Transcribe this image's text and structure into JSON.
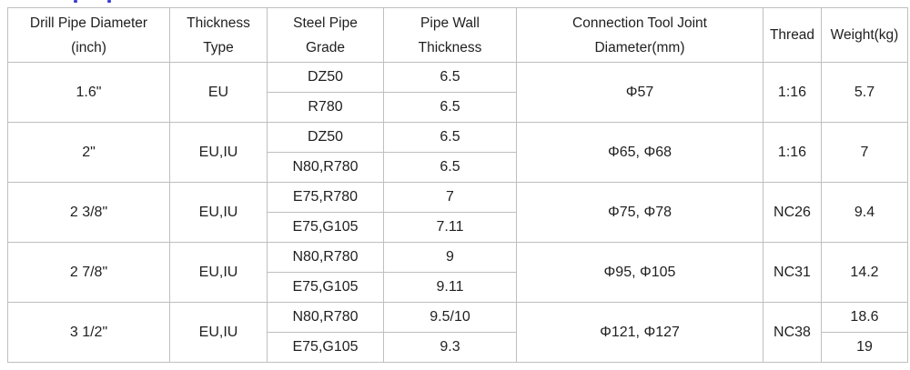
{
  "decor": {
    "cropped_title_fragment_color": "#3c3cd6"
  },
  "colors": {
    "border": "#bfbfbf",
    "text": "#1f1f1f",
    "background": "#ffffff"
  },
  "table": {
    "headers": [
      {
        "line1": "Drill Pipe Diameter",
        "line2": "(inch)"
      },
      {
        "line1": "Thickness",
        "line2": "Type"
      },
      {
        "line1": "Steel Pipe",
        "line2": "Grade"
      },
      {
        "line1": "Pipe Wall",
        "line2": "Thickness"
      },
      {
        "line1": "Connection Tool Joint",
        "line2": "Diameter(mm)"
      },
      {
        "line1": "Thread",
        "line2": ""
      },
      {
        "line1": "Weight(kg)",
        "line2": ""
      }
    ],
    "rows": [
      {
        "diameter": "1.6\"",
        "thickness_type": "EU",
        "sub": [
          {
            "grade": "DZ50",
            "wall": "6.5"
          },
          {
            "grade": "R780",
            "wall": "6.5"
          }
        ],
        "joint_diameter": "Φ57",
        "thread": "1:16",
        "weight": [
          "5.7"
        ]
      },
      {
        "diameter": "2\"",
        "thickness_type": "EU,IU",
        "sub": [
          {
            "grade": "DZ50",
            "wall": "6.5"
          },
          {
            "grade": "N80,R780",
            "wall": "6.5"
          }
        ],
        "joint_diameter": "Φ65, Φ68",
        "thread": "1:16",
        "weight": [
          "7"
        ]
      },
      {
        "diameter": "2 3/8\"",
        "thickness_type": "EU,IU",
        "sub": [
          {
            "grade": "E75,R780",
            "wall": "7"
          },
          {
            "grade": "E75,G105",
            "wall": "7.11"
          }
        ],
        "joint_diameter": "Φ75, Φ78",
        "thread": "NC26",
        "weight": [
          "9.4"
        ]
      },
      {
        "diameter": "2 7/8\"",
        "thickness_type": "EU,IU",
        "sub": [
          {
            "grade": "N80,R780",
            "wall": "9"
          },
          {
            "grade": "E75,G105",
            "wall": "9.11"
          }
        ],
        "joint_diameter": "Φ95, Φ105",
        "thread": "NC31",
        "weight": [
          "14.2"
        ]
      },
      {
        "diameter": "3 1/2\"",
        "thickness_type": "EU,IU",
        "sub": [
          {
            "grade": "N80,R780",
            "wall": "9.5/10"
          },
          {
            "grade": "E75,G105",
            "wall": "9.3"
          }
        ],
        "joint_diameter": "Φ121, Φ127",
        "thread": "NC38",
        "weight": [
          "18.6",
          "19"
        ]
      }
    ]
  }
}
